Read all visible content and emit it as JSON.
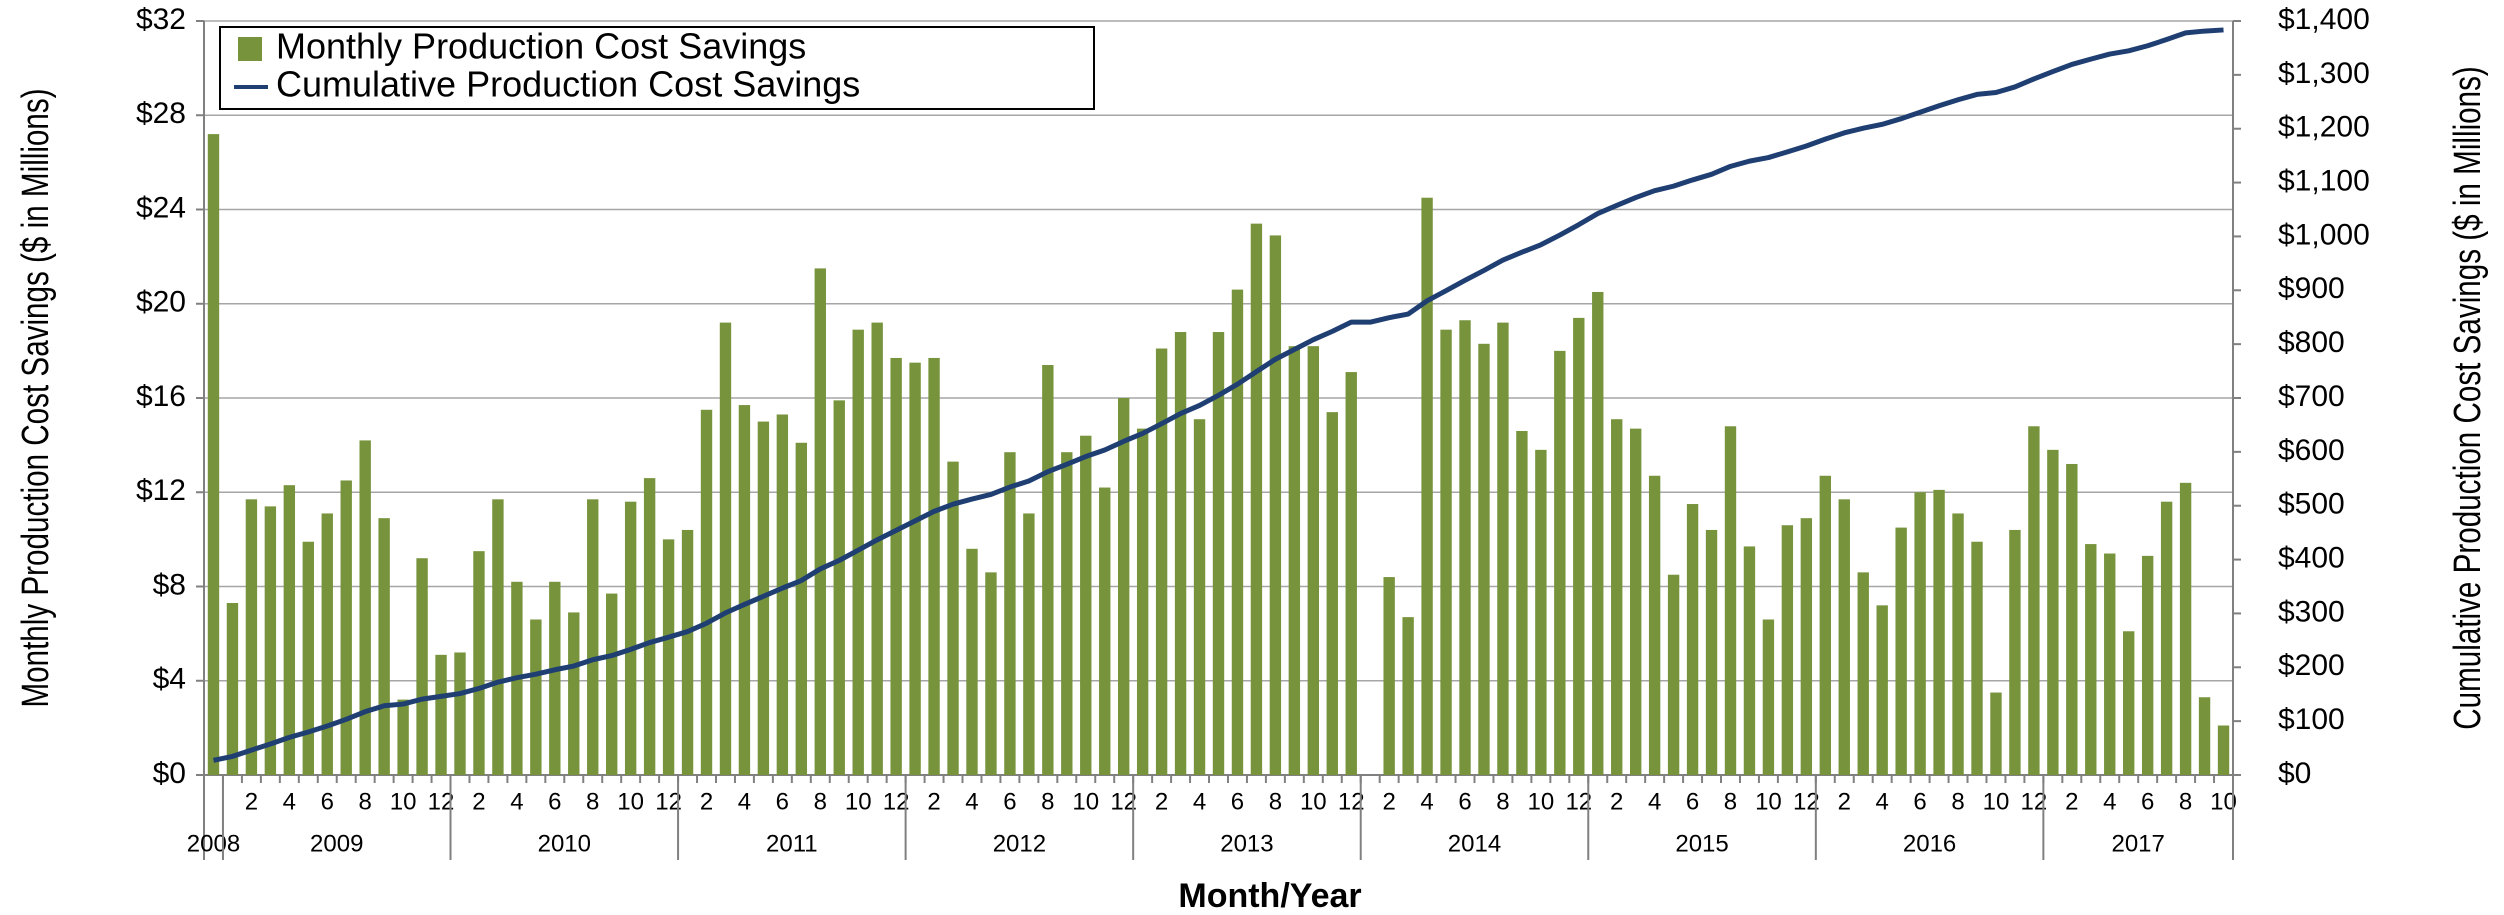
{
  "chart_data": {
    "type": "bar",
    "xlabel": "Month/Year",
    "ylabel": "Monthly Production Cost Savings ($ in Millions)",
    "y2label": "Cumulative Production Cost Savings ($ in Millions)",
    "categories": [
      null,
      null,
      "2",
      null,
      "4",
      null,
      "6",
      null,
      "8",
      null,
      "10",
      null,
      "12",
      null,
      "2",
      null,
      "4",
      null,
      "6",
      null,
      "8",
      null,
      "10",
      null,
      "12",
      null,
      "2",
      null,
      "4",
      null,
      "6",
      null,
      "8",
      null,
      "10",
      null,
      "12",
      null,
      "2",
      null,
      "4",
      null,
      "6",
      null,
      "8",
      null,
      "10",
      null,
      "12",
      null,
      "2",
      null,
      "4",
      null,
      "6",
      null,
      "8",
      null,
      "10",
      null,
      "12",
      null,
      "2",
      null,
      "4",
      null,
      "6",
      null,
      "8",
      null,
      "10",
      null,
      "12",
      null,
      "2",
      null,
      "4",
      null,
      "6",
      null,
      "8",
      null,
      "10",
      null,
      "12",
      null,
      "2",
      null,
      "4",
      null,
      "6",
      null,
      "8",
      null,
      "10",
      null,
      "12",
      null,
      "2",
      null,
      "4",
      null,
      "6",
      null,
      "8",
      null,
      "10"
    ],
    "year_labels": [
      "2008",
      "2009",
      "2010",
      "2011",
      "2012",
      "2013",
      "2014",
      "2015",
      "2016",
      "2017"
    ],
    "series": [
      {
        "name": "Monthly Production Cost Savings",
        "type": "bar",
        "color": "#77933c",
        "values": [
          27.2,
          7.3,
          11.7,
          11.4,
          12.3,
          9.9,
          11.1,
          12.5,
          14.2,
          10.9,
          3.2,
          9.2,
          5.1,
          5.2,
          9.5,
          11.7,
          8.2,
          6.6,
          8.2,
          6.9,
          11.7,
          7.7,
          11.6,
          12.6,
          10.0,
          10.4,
          15.5,
          19.2,
          15.7,
          15.0,
          15.3,
          14.1,
          21.5,
          15.9,
          18.9,
          19.2,
          17.7,
          17.5,
          17.7,
          13.3,
          9.6,
          8.6,
          13.7,
          11.1,
          17.4,
          13.7,
          14.4,
          12.2,
          16.0,
          14.7,
          18.1,
          18.8,
          15.1,
          18.8,
          20.6,
          23.4,
          22.9,
          18.2,
          18.2,
          15.4,
          17.1,
          0,
          8.4,
          6.7,
          24.5,
          18.9,
          19.3,
          18.3,
          19.2,
          14.6,
          13.8,
          18.0,
          19.4,
          20.5,
          15.1,
          14.7,
          12.7,
          8.5,
          11.5,
          10.4,
          14.8,
          9.7,
          6.6,
          10.6,
          10.9,
          12.7,
          11.7,
          8.6,
          7.2,
          10.5,
          12.0,
          12.1,
          11.1,
          9.9,
          3.5,
          10.4,
          14.8,
          13.8,
          13.2,
          9.8,
          9.4,
          6.1,
          9.3,
          11.6,
          12.4,
          3.3,
          2.1
        ]
      },
      {
        "name": "Cumulative Production Cost Savings",
        "type": "line",
        "axis": "y2",
        "color": "#1f3f73",
        "values": [
          27.2,
          34.5,
          46.2,
          57.6,
          69.9,
          79.8,
          90.9,
          103.4,
          117.6,
          128.5,
          131.7,
          140.9,
          146.0,
          151.2,
          160.7,
          172.4,
          180.6,
          187.2,
          195.4,
          202.3,
          214.0,
          221.7,
          233.3,
          245.9,
          255.9,
          266.3,
          281.8,
          301.0,
          316.7,
          331.7,
          347.0,
          361.1,
          382.6,
          398.5,
          417.4,
          436.6,
          454.3,
          471.8,
          489.5,
          502.8,
          512.4,
          521.0,
          534.7,
          545.8,
          563.2,
          576.9,
          591.3,
          603.5,
          619.5,
          634.2,
          652.3,
          671.1,
          686.2,
          705.0,
          725.6,
          749.0,
          771.9,
          790.1,
          808.3,
          823.7,
          840.8,
          840.8,
          849.2,
          855.9,
          880.4,
          899.3,
          918.6,
          936.9,
          956.1,
          970.7,
          984.5,
          1002.5,
          1021.9,
          1042.4,
          1057.5,
          1072.2,
          1084.9,
          1093.4,
          1104.9,
          1115.3,
          1130.1,
          1139.8,
          1146.4,
          1157.0,
          1167.9,
          1180.6,
          1192.3,
          1200.9,
          1208.1,
          1218.6,
          1230.6,
          1242.7,
          1253.8,
          1263.7,
          1267.2,
          1277.6,
          1292.4,
          1306.2,
          1319.4,
          1329.2,
          1338.6,
          1344.7,
          1354.0,
          1365.6,
          1378.0,
          1381.3,
          1383.4
        ]
      }
    ],
    "ylim": [
      0,
      32
    ],
    "yticks": [
      {
        "value": 0,
        "label": "$0"
      },
      {
        "value": 4,
        "label": "$4"
      },
      {
        "value": 8,
        "label": "$8"
      },
      {
        "value": 12,
        "label": "$12"
      },
      {
        "value": 16,
        "label": "$16"
      },
      {
        "value": 20,
        "label": "$20"
      },
      {
        "value": 24,
        "label": "$24"
      },
      {
        "value": 28,
        "label": "$28"
      },
      {
        "value": 32,
        "label": "$32"
      }
    ],
    "y2lim": [
      0,
      1400
    ],
    "y2ticks": [
      {
        "value": 0,
        "label": "$0"
      },
      {
        "value": 100,
        "label": "$100"
      },
      {
        "value": 200,
        "label": "$200"
      },
      {
        "value": 300,
        "label": "$300"
      },
      {
        "value": 400,
        "label": "$400"
      },
      {
        "value": 500,
        "label": "$500"
      },
      {
        "value": 600,
        "label": "$600"
      },
      {
        "value": 700,
        "label": "$700"
      },
      {
        "value": 800,
        "label": "$800"
      },
      {
        "value": 900,
        "label": "$900"
      },
      {
        "value": 1000,
        "label": "$1,000"
      },
      {
        "value": 1100,
        "label": "$1,100"
      },
      {
        "value": 1200,
        "label": "$1,200"
      },
      {
        "value": 1300,
        "label": "$1,300"
      },
      {
        "value": 1400,
        "label": "$1,400"
      }
    ],
    "grid": true,
    "legend": "upper left"
  }
}
